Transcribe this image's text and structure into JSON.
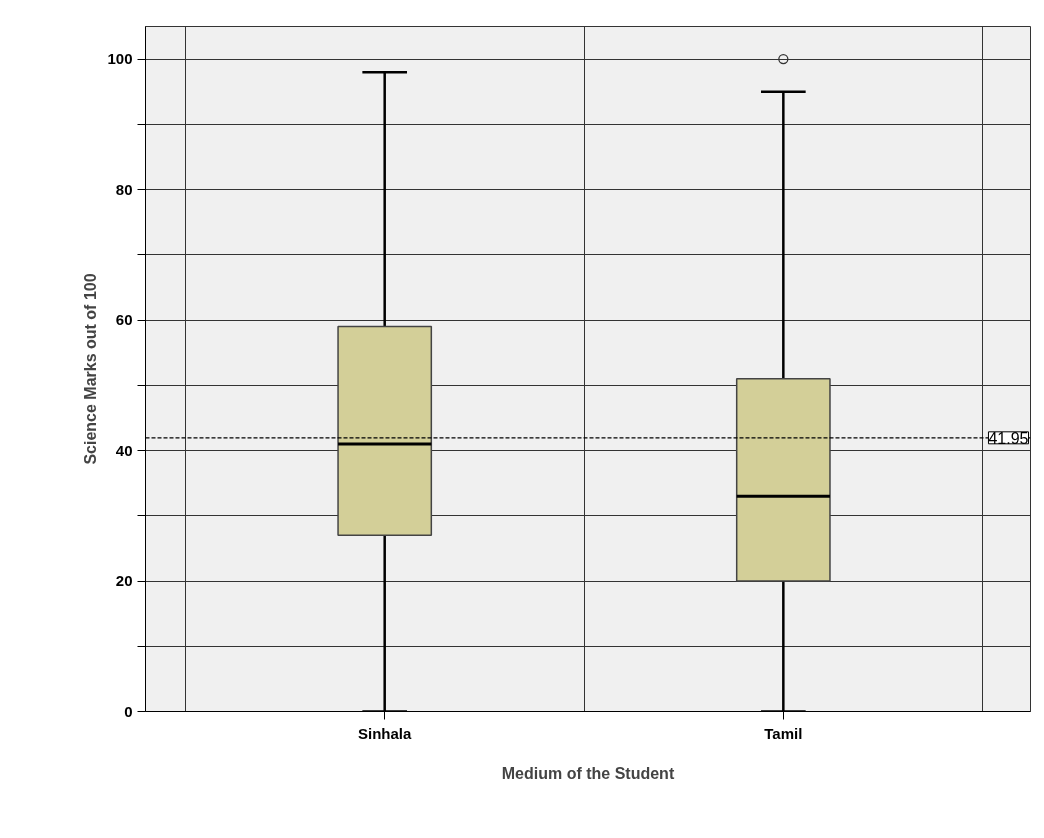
{
  "chart_data": {
    "type": "box",
    "xlabel": "Medium of the Student",
    "ylabel": "Science Marks out of 100",
    "categories": [
      "Sinhala",
      "Tamil"
    ],
    "boxes": [
      {
        "low": 0,
        "q1": 27,
        "median": 41,
        "q3": 59,
        "high": 98
      },
      {
        "low": 0,
        "q1": 20,
        "median": 33,
        "q3": 51,
        "high": 95,
        "outliers": [
          100
        ]
      }
    ],
    "color": "#d3cf98",
    "ylim": [
      0,
      105
    ],
    "yticks": [
      0,
      {
        "value": 10,
        "label": null
      },
      20,
      {
        "value": 30,
        "label": null
      },
      40,
      {
        "value": 50,
        "label": null
      },
      60,
      {
        "value": 70,
        "label": null
      },
      80,
      {
        "value": 90,
        "label": null
      },
      100
    ],
    "grid": true,
    "ref_lines": [
      {
        "axis": "y",
        "value": 41.95,
        "label": "41.95",
        "line_style": "dashed",
        "color": "#000000"
      }
    ]
  }
}
